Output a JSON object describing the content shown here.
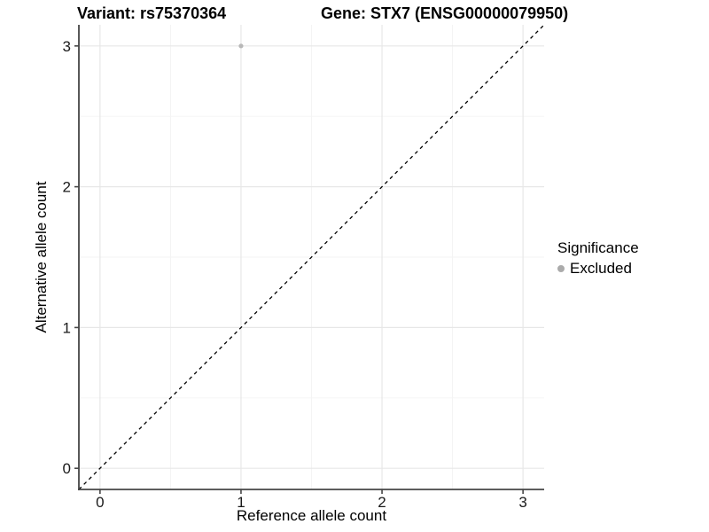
{
  "titles": {
    "variant": "Variant: rs75370364",
    "gene": "Gene: STX7 (ENSG00000079950)"
  },
  "axes": {
    "x_label": "Reference allele count",
    "y_label": "Alternative allele count",
    "x_ticks": [
      "0",
      "1",
      "2",
      "3"
    ],
    "y_ticks": [
      "0",
      "1",
      "2",
      "3"
    ]
  },
  "legend": {
    "title": "Significance",
    "items": [
      {
        "label": "Excluded",
        "color": "#ababab"
      }
    ]
  },
  "colors": {
    "background": "#ffffff",
    "axis_line": "#464646",
    "grid_major": "#e7e7e7",
    "grid_minor": "#f3f3f3",
    "tick_mark": "#464646",
    "tick_label": "#1a1a1a",
    "point": "#b8b8b8",
    "identity_line": "#000000"
  },
  "chart_data": {
    "type": "scatter",
    "title": "Variant: rs75370364 | Gene: STX7 (ENSG00000079950)",
    "xlabel": "Reference allele count",
    "ylabel": "Alternative allele count",
    "xlim": [
      -0.15,
      3.15
    ],
    "ylim": [
      -0.15,
      3.15
    ],
    "x_ticks": [
      0,
      1,
      2,
      3
    ],
    "y_ticks": [
      0,
      1,
      2,
      3
    ],
    "minor_grid_step": 0.5,
    "grid": true,
    "legend_position": "right",
    "series": [
      {
        "name": "Excluded",
        "color": "#b8b8b8",
        "points": [
          [
            1,
            3
          ]
        ]
      }
    ],
    "reference_line": {
      "equation": "y = x",
      "style": "dashed",
      "color": "#000000"
    }
  }
}
